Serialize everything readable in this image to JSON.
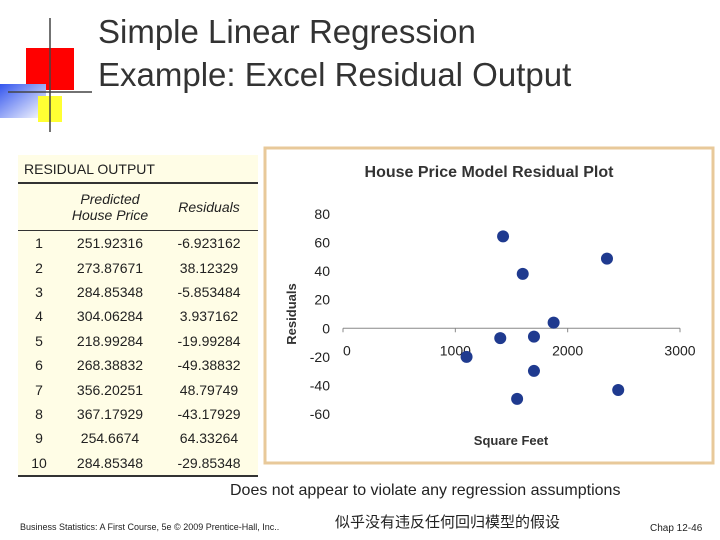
{
  "header": {
    "title_lines": [
      "Simple Linear Regression",
      "Example:  Excel Residual Output"
    ]
  },
  "table": {
    "title": "RESIDUAL OUTPUT",
    "columns": [
      "Predicted House Price",
      "Residuals"
    ],
    "rows": [
      [
        1,
        251.92316,
        -6.923162
      ],
      [
        2,
        273.87671,
        38.12329
      ],
      [
        3,
        284.85348,
        -5.853484
      ],
      [
        4,
        304.06284,
        3.937162
      ],
      [
        5,
        218.99284,
        -19.99284
      ],
      [
        6,
        268.38832,
        -49.38832
      ],
      [
        7,
        356.20251,
        48.79749
      ],
      [
        8,
        367.17929,
        -43.17929
      ],
      [
        9,
        254.6674,
        64.33264
      ],
      [
        10,
        284.85348,
        -29.85348
      ]
    ]
  },
  "chart_data": {
    "type": "scatter",
    "title": "House Price Model Residual Plot",
    "x_label": "Square Feet",
    "y_label": "Residuals",
    "x": [
      1400,
      1600,
      1700,
      1875,
      1100,
      1550,
      2350,
      2450,
      1425,
      1700
    ],
    "series": [
      {
        "color": "#1f3a8f",
        "values": [
          -6.923162,
          38.12329,
          -5.853484,
          3.937162,
          -19.99284,
          -49.38832,
          48.79749,
          -43.17929,
          64.33264,
          -29.85348
        ]
      }
    ],
    "xlim": [
      0,
      3000
    ],
    "xticks": [
      0,
      1000,
      2000,
      3000
    ],
    "ylim": [
      -60,
      80
    ],
    "yticks": [
      80,
      60,
      40,
      20,
      0,
      -20,
      -40,
      -60
    ]
  },
  "caption": "Does not appear to violate any regression assumptions",
  "footer": {
    "source": "Business Statistics: A First Course, 5e © 2009 Prentice-Hall, Inc..",
    "note": "似乎没有违反任何回归模型的假设",
    "page": "Chap 12-46"
  }
}
